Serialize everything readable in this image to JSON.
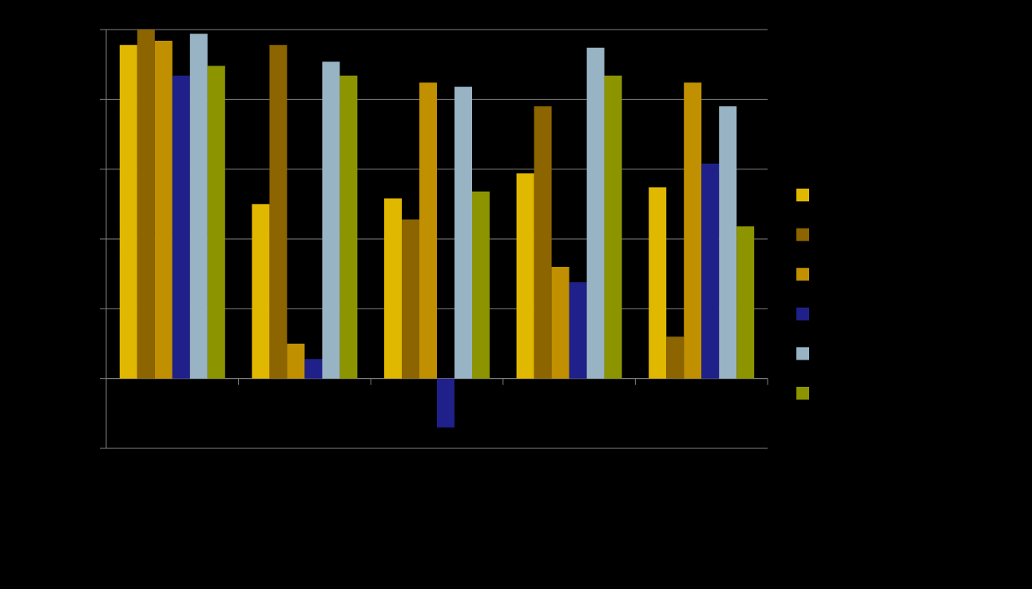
{
  "chart_data": {
    "type": "bar",
    "categories": [
      null,
      null,
      null,
      null,
      null
    ],
    "series": [
      {
        "color": "#e0b800",
        "values": [
          239,
          125,
          129,
          147,
          137
        ]
      },
      {
        "color": "#8c6400",
        "values": [
          250,
          239,
          114,
          195,
          30
        ]
      },
      {
        "color": "#c09000",
        "values": [
          242,
          25,
          212,
          80,
          212
        ]
      },
      {
        "color": "#20208a",
        "values": [
          217,
          14,
          -35,
          69,
          154
        ]
      },
      {
        "color": "#98b4c4",
        "values": [
          247,
          227,
          209,
          237,
          195
        ]
      },
      {
        "color": "#8c9400",
        "values": [
          224,
          217,
          134,
          217,
          109
        ]
      }
    ],
    "ylim": [
      -50,
      250
    ],
    "yticks": [
      -50,
      0,
      50,
      100,
      150,
      200,
      250
    ],
    "grid": true,
    "legend": "right"
  }
}
